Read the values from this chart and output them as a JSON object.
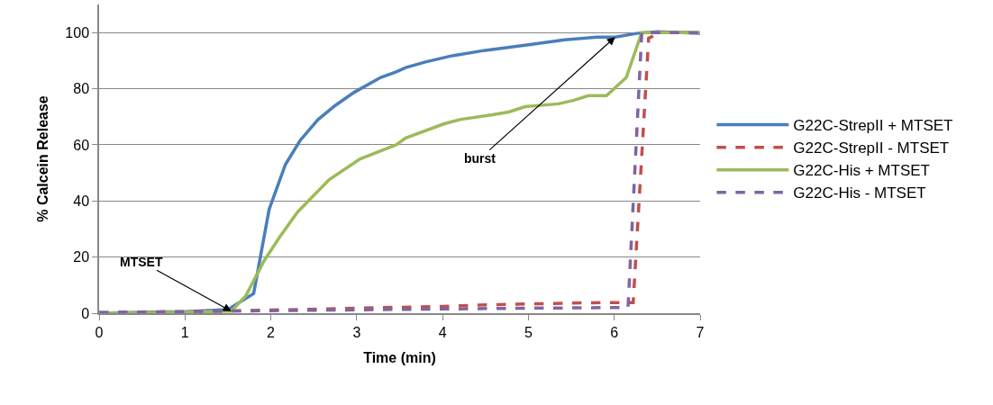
{
  "chart_data": {
    "type": "line",
    "xlabel": "Time (min)",
    "ylabel": "% Calcein Release",
    "xlim": [
      0,
      7
    ],
    "xticks": [
      0,
      1,
      2,
      3,
      4,
      5,
      6,
      7
    ],
    "ylim": [
      0,
      110
    ],
    "yticks": [
      0,
      20,
      40,
      60,
      80,
      100
    ],
    "grid": "y",
    "legend": "right",
    "marker": "none",
    "series": [
      {
        "name": "G22C-StrepII + MTSET",
        "color": "#4a7ebb",
        "line_style": "solid",
        "x": [
          0,
          0.5,
          1,
          1.5,
          1.8,
          1.98,
          2.17,
          2.34,
          2.55,
          2.75,
          2.97,
          3.28,
          3.46,
          3.57,
          3.8,
          4.09,
          4.48,
          5.04,
          5.42,
          5.8,
          6.01,
          6.26,
          6.5,
          7
        ],
        "values": [
          0,
          0.3,
          0.6,
          1.3,
          7,
          37,
          53,
          61.5,
          69,
          74,
          78.7,
          84,
          86,
          87.5,
          89.5,
          91.6,
          93.6,
          95.8,
          97.4,
          98.4,
          98.4,
          99.7,
          100.3,
          99.7
        ]
      },
      {
        "name": "G22C-StrepII - MTSET",
        "color": "#c0504d",
        "line_style": "dashed",
        "x": [
          0,
          1,
          2,
          3,
          4,
          4.5,
          5,
          5.5,
          6,
          6.22,
          6.4,
          6.54,
          7
        ],
        "values": [
          0,
          0.5,
          1.1,
          1.8,
          2.4,
          3,
          3.3,
          3.6,
          3.8,
          3.8,
          98,
          100,
          100
        ]
      },
      {
        "name": "G22C-His + MTSET",
        "color": "#9bbb59",
        "line_style": "solid",
        "x": [
          0,
          0.5,
          1,
          1.54,
          1.71,
          1.92,
          2.1,
          2.31,
          2.68,
          3.04,
          3.46,
          3.57,
          4.02,
          4.2,
          4.58,
          4.77,
          4.96,
          5.35,
          5.53,
          5.7,
          5.91,
          6.14,
          6.32,
          7
        ],
        "values": [
          0,
          0.2,
          0.4,
          0.7,
          6.3,
          18.6,
          27,
          36,
          47.6,
          55,
          60,
          62.4,
          67.5,
          69,
          70.7,
          71.7,
          73.6,
          74.6,
          75.9,
          77.5,
          77.5,
          84,
          100,
          100
        ]
      },
      {
        "name": "G22C-His - MTSET",
        "color": "#8064a2",
        "line_style": "dashed",
        "x": [
          0,
          1,
          2,
          3,
          4,
          5,
          6,
          6.16,
          6.32,
          7
        ],
        "values": [
          0.3,
          0.6,
          0.9,
          1.2,
          1.5,
          1.8,
          2,
          2,
          100,
          100
        ]
      }
    ],
    "annotations": [
      {
        "text": "MTSET",
        "x": 1.54,
        "y": 0.7
      },
      {
        "text": "burst",
        "x": 6.01,
        "y": 98.4
      }
    ]
  }
}
